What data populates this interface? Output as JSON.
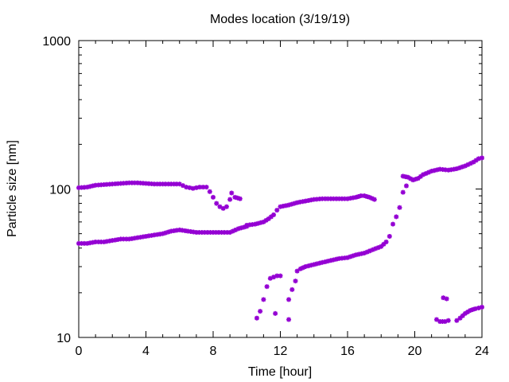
{
  "chart_data": {
    "type": "scatter",
    "title": "Modes location (3/19/19)",
    "xlabel": "Time [hour]",
    "ylabel": "Particle size [nm]",
    "xlim": [
      0,
      24
    ],
    "ylim": [
      10,
      1000
    ],
    "y_scale": "log",
    "x_ticks": [
      "0",
      "4",
      "8",
      "12",
      "16",
      "20",
      "24"
    ],
    "x_tick_values": [
      0,
      4,
      8,
      12,
      16,
      20,
      24
    ],
    "y_ticks": [
      "10",
      "100",
      "1000"
    ],
    "y_tick_values": [
      10,
      100,
      1000
    ],
    "grid": false,
    "marker_color": "#9400D3",
    "series": [
      {
        "points": [
          [
            0.0,
            102
          ],
          [
            0.5,
            103
          ],
          [
            1.0,
            106
          ],
          [
            1.5,
            107
          ],
          [
            2.0,
            108
          ],
          [
            2.5,
            109
          ],
          [
            3.0,
            110
          ],
          [
            3.5,
            110
          ],
          [
            4.0,
            109
          ],
          [
            4.5,
            108
          ],
          [
            5.0,
            108
          ],
          [
            5.5,
            108
          ],
          [
            6.0,
            108
          ],
          [
            6.4,
            103
          ],
          [
            6.8,
            101
          ],
          [
            7.2,
            103
          ],
          [
            7.6,
            103
          ],
          [
            7.8,
            96
          ],
          [
            8.0,
            88
          ],
          [
            8.2,
            80
          ],
          [
            8.4,
            76
          ],
          [
            8.6,
            74
          ],
          [
            8.8,
            76
          ],
          [
            9.0,
            85
          ],
          [
            9.1,
            94
          ],
          [
            9.3,
            88
          ],
          [
            9.6,
            86
          ],
          [
            10.0,
            57
          ],
          [
            10.5,
            58
          ],
          [
            11.0,
            60
          ],
          [
            11.3,
            63
          ],
          [
            11.6,
            67
          ],
          [
            11.8,
            72
          ],
          [
            12.0,
            76
          ],
          [
            12.5,
            78
          ],
          [
            13.0,
            81
          ],
          [
            13.5,
            83
          ],
          [
            14.0,
            85
          ],
          [
            14.5,
            86
          ],
          [
            15.0,
            86
          ],
          [
            15.5,
            86
          ],
          [
            16.0,
            86
          ],
          [
            16.5,
            88
          ],
          [
            16.8,
            90
          ],
          [
            17.0,
            90
          ],
          [
            17.3,
            88
          ],
          [
            17.6,
            85
          ],
          [
            19.3,
            122
          ],
          [
            19.6,
            120
          ],
          [
            19.9,
            115
          ],
          [
            20.2,
            118
          ],
          [
            20.5,
            125
          ],
          [
            21.0,
            132
          ],
          [
            21.5,
            136
          ],
          [
            22.0,
            134
          ],
          [
            22.5,
            137
          ],
          [
            23.0,
            143
          ],
          [
            23.5,
            152
          ],
          [
            23.8,
            160
          ],
          [
            24.0,
            162
          ]
        ]
      },
      {
        "points": [
          [
            0.0,
            43
          ],
          [
            0.5,
            43
          ],
          [
            1.0,
            44
          ],
          [
            1.5,
            44
          ],
          [
            2.0,
            45
          ],
          [
            2.5,
            46
          ],
          [
            3.0,
            46
          ],
          [
            3.5,
            47
          ],
          [
            4.0,
            48
          ],
          [
            4.5,
            49
          ],
          [
            5.0,
            50
          ],
          [
            5.5,
            52
          ],
          [
            6.0,
            53
          ],
          [
            6.5,
            52
          ],
          [
            7.0,
            51
          ],
          [
            7.5,
            51
          ],
          [
            8.0,
            51
          ],
          [
            8.5,
            51
          ],
          [
            9.0,
            51
          ],
          [
            9.5,
            54
          ],
          [
            10.0,
            56
          ]
        ]
      },
      {
        "points": [
          [
            10.6,
            13.5
          ],
          [
            10.8,
            15
          ],
          [
            11.0,
            18
          ],
          [
            11.2,
            22
          ],
          [
            11.4,
            25
          ],
          [
            11.6,
            25.5
          ],
          [
            11.8,
            26
          ],
          [
            12.0,
            26
          ],
          [
            11.7,
            14.5
          ],
          [
            12.5,
            13.2
          ],
          [
            12.5,
            18
          ],
          [
            12.7,
            21
          ],
          [
            12.9,
            24
          ],
          [
            13.0,
            28
          ],
          [
            13.2,
            29
          ],
          [
            13.5,
            30
          ],
          [
            14.0,
            31
          ],
          [
            14.5,
            32
          ],
          [
            15.0,
            33
          ],
          [
            15.5,
            34
          ],
          [
            16.0,
            34.5
          ],
          [
            16.5,
            36
          ],
          [
            17.0,
            37
          ],
          [
            17.5,
            39
          ],
          [
            18.0,
            41
          ],
          [
            18.3,
            44
          ],
          [
            18.5,
            48
          ],
          [
            18.7,
            58
          ],
          [
            18.9,
            65
          ],
          [
            19.1,
            75
          ],
          [
            19.3,
            95
          ],
          [
            19.5,
            105
          ]
        ]
      },
      {
        "points": [
          [
            21.3,
            13.2
          ],
          [
            21.5,
            12.8
          ],
          [
            21.8,
            12.8
          ],
          [
            22.0,
            13.0
          ],
          [
            21.7,
            18.5
          ],
          [
            21.9,
            18.2
          ],
          [
            22.5,
            13.0
          ],
          [
            22.7,
            13.5
          ],
          [
            23.0,
            14.5
          ],
          [
            23.3,
            15.2
          ],
          [
            23.6,
            15.6
          ],
          [
            24.0,
            16.0
          ]
        ]
      }
    ]
  }
}
